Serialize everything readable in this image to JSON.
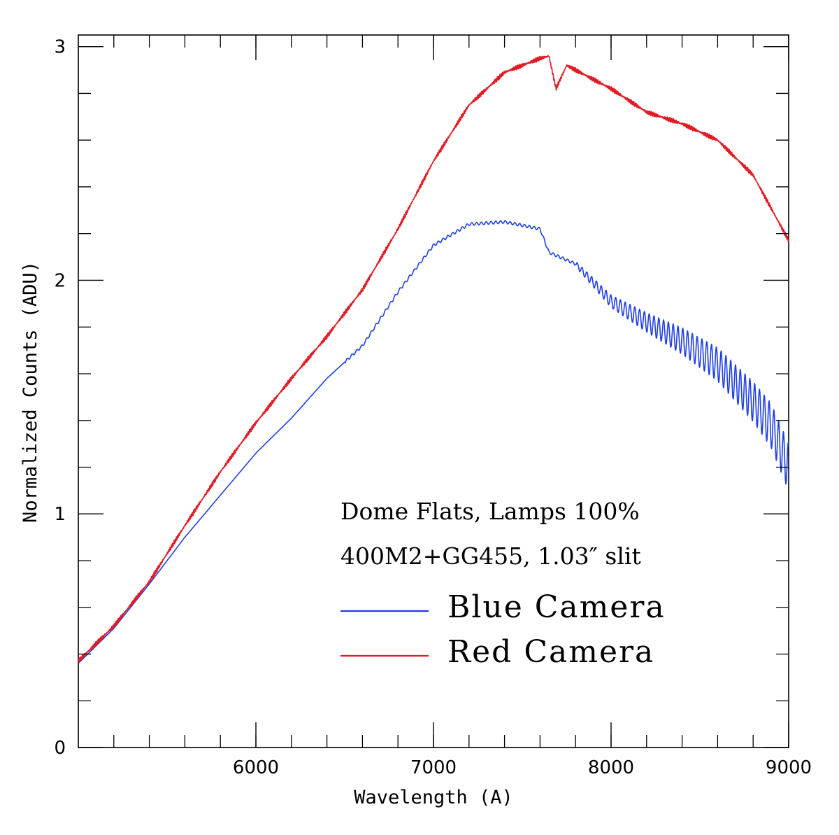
{
  "chart_data": {
    "type": "line",
    "xlabel": "Wavelength (A)",
    "ylabel": "Normalized Counts (ADU)",
    "xlim": [
      5000,
      9000
    ],
    "ylim": [
      0,
      3.05
    ],
    "x_major_ticks": [
      6000,
      7000,
      8000,
      9000
    ],
    "x_tick_labels": [
      "6000",
      "7000",
      "8000",
      "9000"
    ],
    "x_minor_step": 200,
    "y_major_ticks": [
      0,
      1,
      2,
      3
    ],
    "y_tick_labels": [
      "0",
      "1",
      "2",
      "3"
    ],
    "y_minor_step": 0.2,
    "grid": false,
    "annotations": [
      "Dome Flats, Lamps 100%",
      "400M2+GG455, 1.03″ slit"
    ],
    "legend_position": "lower-right",
    "series": [
      {
        "name": "Blue Camera",
        "color": "#1f3fe6",
        "ripple": "fringing above 7800 A",
        "points": [
          [
            5000,
            0.36
          ],
          [
            5200,
            0.51
          ],
          [
            5400,
            0.7
          ],
          [
            5600,
            0.9
          ],
          [
            5800,
            1.08
          ],
          [
            6000,
            1.26
          ],
          [
            6200,
            1.41
          ],
          [
            6400,
            1.58
          ],
          [
            6600,
            1.72
          ],
          [
            6800,
            1.95
          ],
          [
            7000,
            2.15
          ],
          [
            7200,
            2.24
          ],
          [
            7400,
            2.25
          ],
          [
            7600,
            2.22
          ],
          [
            7650,
            2.12
          ],
          [
            7800,
            2.07
          ],
          [
            8000,
            1.91
          ],
          [
            8200,
            1.82
          ],
          [
            8400,
            1.74
          ],
          [
            8600,
            1.64
          ],
          [
            8800,
            1.48
          ],
          [
            8900,
            1.38
          ],
          [
            9000,
            1.2
          ]
        ]
      },
      {
        "name": "Red Camera",
        "color": "#e01b24",
        "ripple": "slight noise",
        "points": [
          [
            5000,
            0.37
          ],
          [
            5200,
            0.52
          ],
          [
            5400,
            0.71
          ],
          [
            5600,
            0.95
          ],
          [
            5800,
            1.18
          ],
          [
            6000,
            1.39
          ],
          [
            6200,
            1.58
          ],
          [
            6400,
            1.76
          ],
          [
            6600,
            1.96
          ],
          [
            6800,
            2.22
          ],
          [
            7000,
            2.51
          ],
          [
            7200,
            2.75
          ],
          [
            7400,
            2.89
          ],
          [
            7600,
            2.95
          ],
          [
            7650,
            2.96
          ],
          [
            7690,
            2.82
          ],
          [
            7750,
            2.92
          ],
          [
            8000,
            2.82
          ],
          [
            8200,
            2.72
          ],
          [
            8400,
            2.67
          ],
          [
            8600,
            2.6
          ],
          [
            8800,
            2.45
          ],
          [
            9000,
            2.17
          ]
        ]
      }
    ]
  }
}
